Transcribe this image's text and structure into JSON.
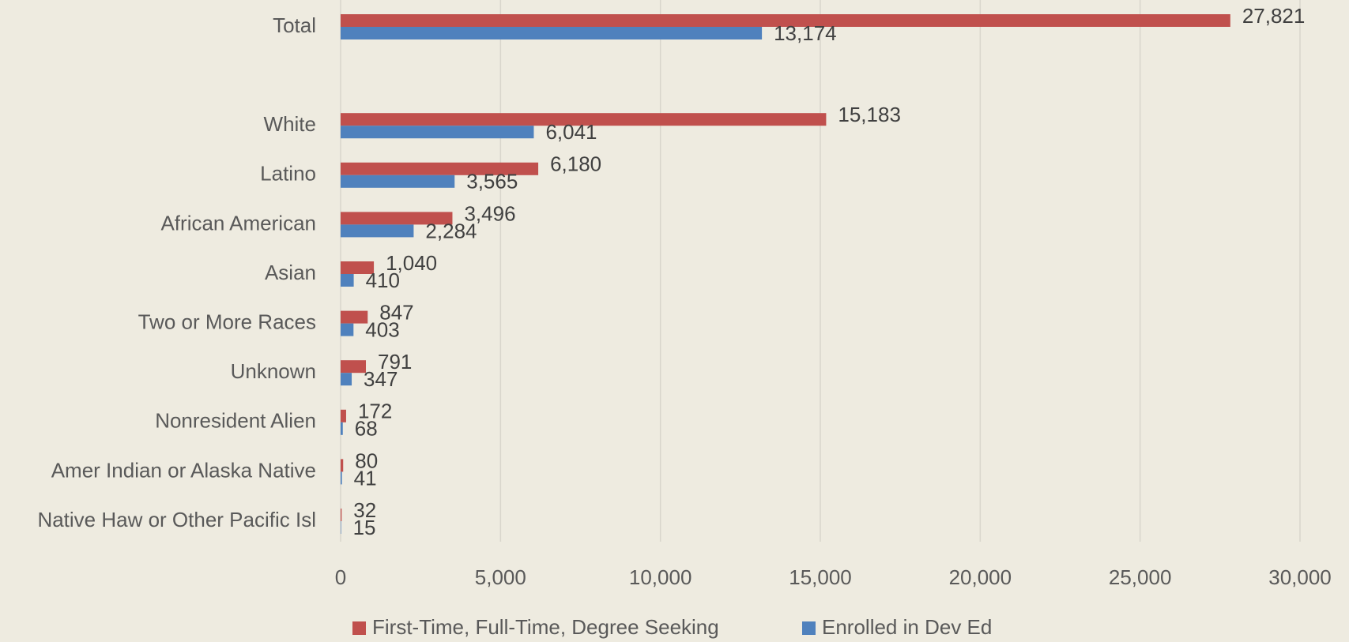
{
  "chart_data": {
    "type": "hbar",
    "categories": [
      "Total",
      null,
      "White",
      "Latino",
      "African  American",
      "Asian",
      "Two or More Races",
      "Unknown",
      "Nonresident Alien",
      "Amer Indian or Alaska Native",
      "Native Haw or Other Pacific Isl"
    ],
    "series": [
      {
        "name": "First-Time, Full-Time, Degree Seeking",
        "color": "#c0504d",
        "values": [
          27821,
          null,
          15183,
          6180,
          3496,
          1040,
          847,
          791,
          172,
          80,
          32
        ],
        "value_labels": [
          "27,821",
          null,
          "15,183",
          "6,180",
          "3,496",
          "1,040",
          "847",
          "791",
          "172",
          "80",
          "32"
        ]
      },
      {
        "name": "Enrolled in Dev Ed",
        "color": "#4f81bd",
        "values": [
          13174,
          null,
          6041,
          3565,
          2284,
          410,
          403,
          347,
          68,
          41,
          15
        ],
        "value_labels": [
          "13,174",
          null,
          "6,041",
          "3,565",
          "2,284",
          "410",
          "403",
          "347",
          "68",
          "41",
          "15"
        ]
      }
    ],
    "xlim": [
      0,
      30000
    ],
    "xticks": [
      0,
      {
        "value": 5000,
        "label": "5,000"
      },
      {
        "value": 10000,
        "label": "10,000"
      },
      {
        "value": 15000,
        "label": "15,000"
      },
      {
        "value": 20000,
        "label": "20,000"
      },
      {
        "value": 25000,
        "label": "25,000"
      },
      {
        "value": 30000,
        "label": "30,000"
      }
    ],
    "grid": true,
    "legend": "bottom"
  }
}
